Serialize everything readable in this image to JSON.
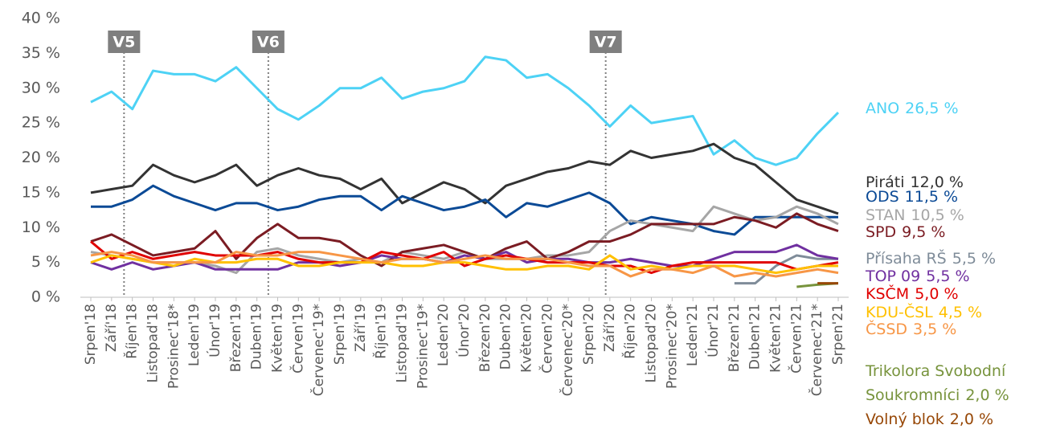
{
  "chart_data": {
    "type": "line",
    "categories": [
      "Srpen'18",
      "Září'18",
      "Říjen'18",
      "Listopad'18",
      "Prosinec'18*",
      "Leden'19",
      "Únor'19",
      "Březen'19",
      "Duben'19",
      "Květen'19",
      "Červen'19",
      "Červenec'19*",
      "Srpen'19",
      "Září'19",
      "Říjen'19",
      "Listopad'19",
      "Prosinec'19*",
      "Leden'20",
      "Únor'20",
      "Březen'20",
      "Duben'20",
      "Květen'20",
      "Červen'20",
      "Červenec'20*",
      "Srpen'20",
      "Září'20",
      "Říjen'20",
      "Listopad'20",
      "Prosinec'20*",
      "Leden'21",
      "Únor'21",
      "Březen'21",
      "Duben'21",
      "Květen'21",
      "Červen'21",
      "Červenec'21*",
      "Srpen'21"
    ],
    "ylim": [
      0,
      40
    ],
    "yticks": [
      {
        "value": 0,
        "label": "0 %"
      },
      {
        "value": 5,
        "label": "5 %"
      },
      {
        "value": 10,
        "label": "10 %"
      },
      {
        "value": 15,
        "label": "15 %"
      },
      {
        "value": 20,
        "label": "20 %"
      },
      {
        "value": 25,
        "label": "25 %"
      },
      {
        "value": 30,
        "label": "30 %"
      },
      {
        "value": 35,
        "label": "35 %"
      },
      {
        "value": 40,
        "label": "40 %"
      }
    ],
    "annotations": [
      {
        "label": "V5",
        "x": 1.6
      },
      {
        "label": "V6",
        "x": 8.55
      },
      {
        "label": "V7",
        "x": 24.8
      }
    ],
    "series": [
      {
        "name": "ANO",
        "end_label": "26,5 %",
        "color": "#4dd2f5",
        "values": [
          28,
          29.5,
          27,
          32.5,
          32,
          32,
          31,
          33,
          30,
          27,
          25.5,
          27.5,
          30,
          30,
          31.5,
          28.5,
          29.5,
          30,
          31,
          34.5,
          34,
          31.5,
          32,
          30,
          27.5,
          24.5,
          27.5,
          25,
          25.5,
          26,
          20.5,
          22.5,
          20,
          19,
          20,
          23.5,
          26.5
        ]
      },
      {
        "name": "Piráti",
        "end_label": "12,0 %",
        "color": "#333333",
        "values": [
          15,
          15.5,
          16,
          19,
          17.5,
          16.5,
          17.5,
          19,
          16,
          17.5,
          18.5,
          17.5,
          17,
          15.5,
          17,
          13.5,
          15,
          16.5,
          15.5,
          13.5,
          16,
          17,
          18,
          18.5,
          19.5,
          19,
          21,
          20,
          20.5,
          21,
          22,
          20,
          19,
          16.5,
          14,
          13,
          12
        ]
      },
      {
        "name": "ODS",
        "end_label": "11,5 %",
        "color": "#0b4a96",
        "values": [
          13,
          13,
          14,
          16,
          14.5,
          13.5,
          12.5,
          13.5,
          13.5,
          12.5,
          13,
          14,
          14.5,
          14.5,
          12.5,
          14.5,
          13.5,
          12.5,
          13,
          14,
          11.5,
          13.5,
          13,
          14,
          15,
          13.5,
          10.5,
          11.5,
          11,
          10.5,
          9.5,
          9,
          11.5,
          11.5,
          11.5,
          11.5,
          11.5
        ]
      },
      {
        "name": "STAN",
        "end_label": "10,5 %",
        "color": "#a6a6a6",
        "values": [
          6.5,
          6,
          5.5,
          5,
          5,
          5,
          4.5,
          3.5,
          6.5,
          7,
          6,
          5.5,
          5,
          5.5,
          5,
          6.5,
          6,
          5.5,
          6.5,
          5.5,
          5.5,
          5.5,
          6,
          6,
          6.5,
          9.5,
          11,
          10.5,
          10,
          9.5,
          13,
          12,
          11,
          11.5,
          13,
          12,
          10.5
        ]
      },
      {
        "name": "SPD",
        "end_label": "9,5 %",
        "color": "#7b1c23",
        "values": [
          8,
          9,
          7.5,
          6,
          6.5,
          7,
          9.5,
          5.5,
          8.5,
          10.5,
          8.5,
          8.5,
          8,
          6,
          4.5,
          6.5,
          7,
          7.5,
          6.5,
          5.5,
          7,
          8,
          5.5,
          6.5,
          8,
          8,
          9,
          10.5,
          10.5,
          10.5,
          10.5,
          11.5,
          11,
          10,
          12,
          10.5,
          9.5
        ]
      },
      {
        "name": "Přísaha RŠ",
        "end_label": "5,5 %",
        "color": "#7f8c99",
        "values": [
          null,
          null,
          null,
          null,
          null,
          null,
          null,
          null,
          null,
          null,
          null,
          null,
          null,
          null,
          null,
          null,
          null,
          null,
          null,
          null,
          null,
          null,
          null,
          null,
          null,
          null,
          null,
          null,
          null,
          null,
          null,
          2,
          2,
          4.5,
          6,
          5.5,
          5.5
        ]
      },
      {
        "name": "TOP 09",
        "end_label": "5,5 %",
        "color": "#7030a0",
        "values": [
          5,
          4,
          5,
          4,
          4.5,
          5,
          4,
          4,
          4,
          4,
          5,
          5,
          4.5,
          5,
          6,
          5.5,
          5.5,
          5,
          6,
          5.5,
          6.5,
          5,
          5.5,
          5.5,
          5,
          5,
          5.5,
          5,
          4.5,
          4.5,
          5.5,
          6.5,
          6.5,
          6.5,
          7.5,
          6,
          5.5
        ]
      },
      {
        "name": "KSČM",
        "end_label": "5,0 %",
        "color": "#e00000",
        "values": [
          8,
          5.5,
          6.5,
          5.5,
          6,
          6.5,
          6,
          6,
          6,
          6.5,
          5.5,
          5,
          5,
          5,
          6.5,
          6,
          5.5,
          6.5,
          4.5,
          5.5,
          6,
          5.5,
          5,
          5,
          5,
          4.5,
          4.5,
          3.5,
          4.5,
          5,
          5,
          5,
          5,
          5,
          4,
          4.5,
          5
        ]
      },
      {
        "name": "KDU-ČSL",
        "end_label": "4,5 %",
        "color": "#ffc000",
        "values": [
          5,
          6,
          5.5,
          5,
          4.5,
          5.5,
          5,
          5,
          5.5,
          5.5,
          4.5,
          4.5,
          5,
          5,
          5,
          4.5,
          4.5,
          5,
          5,
          4.5,
          4,
          4,
          4.5,
          4.5,
          4,
          6,
          4,
          4.5,
          4,
          4.5,
          4.5,
          4.5,
          4,
          3.5,
          4,
          4.5,
          4.5
        ]
      },
      {
        "name": "ČSSD",
        "end_label": "3,5 %",
        "color": "#f79646",
        "values": [
          6,
          6.5,
          6,
          5,
          5,
          5,
          5,
          6.5,
          6,
          6,
          6.5,
          6.5,
          6,
          5.5,
          5,
          5.5,
          5.5,
          5,
          5.5,
          6,
          5.5,
          5.5,
          5.5,
          5,
          4.5,
          4.5,
          3,
          4,
          4,
          3.5,
          4.5,
          3,
          3.5,
          3,
          3.5,
          4,
          3.5
        ]
      },
      {
        "name": [
          "Trikolora Svobodní",
          "Soukromníci"
        ],
        "end_label": "2,0 %",
        "color": "#77933c",
        "values": [
          null,
          null,
          null,
          null,
          null,
          null,
          null,
          null,
          null,
          null,
          null,
          null,
          null,
          null,
          null,
          null,
          null,
          null,
          null,
          null,
          null,
          null,
          null,
          null,
          null,
          null,
          null,
          null,
          null,
          null,
          null,
          null,
          null,
          null,
          1.5,
          1.8,
          2
        ]
      },
      {
        "name": "Volný blok",
        "end_label": "2,0 %",
        "color": "#974706",
        "values": [
          null,
          null,
          null,
          null,
          null,
          null,
          null,
          null,
          null,
          null,
          null,
          null,
          null,
          null,
          null,
          null,
          null,
          null,
          null,
          null,
          null,
          null,
          null,
          null,
          null,
          null,
          null,
          null,
          null,
          null,
          null,
          null,
          null,
          null,
          null,
          2,
          2
        ]
      }
    ]
  }
}
